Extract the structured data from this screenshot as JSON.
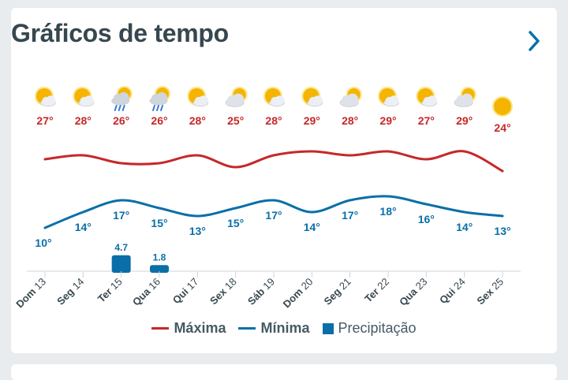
{
  "title": "Gráficos de tempo",
  "colors": {
    "max": "#c62828",
    "min": "#0a6fa8",
    "precip": "#0a6fa8",
    "title": "#37474f"
  },
  "legend": {
    "max": "Máxima",
    "min": "Mínima",
    "precip": "Precipitação"
  },
  "chart_data": {
    "type": "line",
    "categories": [
      "Dom 13",
      "Seg 14",
      "Ter 15",
      "Qua 16",
      "Qui 17",
      "Sex 18",
      "Sáb 19",
      "Dom 20",
      "Seg 21",
      "Ter 22",
      "Qua 23",
      "Qui 24",
      "Sex 25"
    ],
    "icons": [
      "sun-cloud-icon",
      "sun-cloud-icon",
      "sun-rain-icon",
      "sun-rain-icon",
      "sun-cloud-icon",
      "cloud-sun-icon",
      "sun-cloud-icon",
      "sun-cloud-icon",
      "cloud-sun-icon",
      "sun-cloud-icon",
      "sun-cloud-icon",
      "cloud-sun-icon",
      "sun-icon"
    ],
    "series": [
      {
        "name": "Máxima",
        "values": [
          27,
          28,
          26,
          26,
          28,
          25,
          28,
          29,
          28,
          29,
          27,
          29,
          24
        ],
        "labels": [
          "27°",
          "28°",
          "26°",
          "26°",
          "28°",
          "25°",
          "28°",
          "29°",
          "28°",
          "29°",
          "27°",
          "29°",
          "24°"
        ]
      },
      {
        "name": "Mínima",
        "values": [
          10,
          14,
          17,
          15,
          13,
          15,
          17,
          14,
          17,
          18,
          16,
          14,
          13
        ],
        "labels": [
          "10°",
          "14°",
          "17°",
          "15°",
          "13°",
          "15°",
          "17°",
          "14°",
          "17°",
          "18°",
          "16°",
          "14°",
          "13°"
        ]
      },
      {
        "name": "Precipitação",
        "values": [
          0,
          0,
          4.7,
          1.8,
          0,
          0,
          0,
          0,
          0,
          0,
          0,
          0,
          0
        ],
        "labels": [
          "",
          "",
          "4.7",
          "1.8",
          "",
          "",
          "",
          "",
          "",
          "",
          "",
          "",
          ""
        ]
      }
    ]
  }
}
